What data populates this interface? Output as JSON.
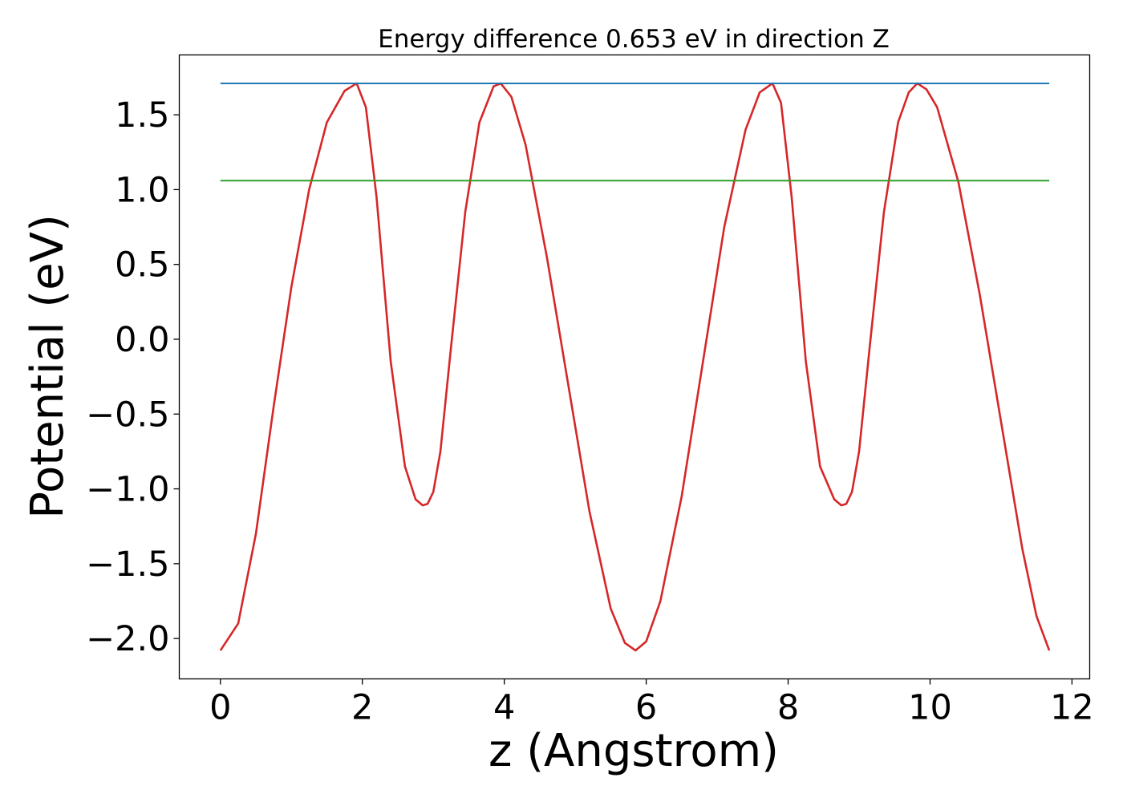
{
  "chart_data": {
    "type": "line",
    "title": "Energy difference 0.653 eV in direction Z",
    "xlabel": "z (Angstrom)",
    "ylabel": "Potential (eV)",
    "xlim": [
      -0.58,
      12.25
    ],
    "ylim": [
      -2.27,
      1.9
    ],
    "xticks": [
      0,
      2,
      4,
      6,
      8,
      10,
      12
    ],
    "xtick_labels": [
      "0",
      "2",
      "4",
      "6",
      "8",
      "10",
      "12"
    ],
    "yticks": [
      -2.0,
      -1.5,
      -1.0,
      -0.5,
      0.0,
      0.5,
      1.0,
      1.5
    ],
    "ytick_labels": [
      "−2.0",
      "−1.5",
      "−1.0",
      "−0.5",
      "0.0",
      "0.5",
      "1.0",
      "1.5"
    ],
    "grid": false,
    "series": [
      {
        "color": "#d62728",
        "x": [
          0.0,
          0.25,
          0.5,
          0.75,
          1.0,
          1.25,
          1.5,
          1.75,
          1.92,
          2.05,
          2.2,
          2.4,
          2.6,
          2.75,
          2.85,
          2.92,
          3.0,
          3.1,
          3.25,
          3.45,
          3.65,
          3.85,
          3.95,
          4.1,
          4.3,
          4.6,
          4.9,
          5.2,
          5.5,
          5.7,
          5.85,
          6.0,
          6.2,
          6.5,
          6.8,
          7.1,
          7.4,
          7.6,
          7.78,
          7.9,
          8.05,
          8.25,
          8.45,
          8.65,
          8.75,
          8.82,
          8.9,
          9.0,
          9.15,
          9.35,
          9.55,
          9.7,
          9.82,
          9.95,
          10.1,
          10.4,
          10.7,
          11.0,
          11.3,
          11.5,
          11.68
        ],
        "y": [
          -2.08,
          -1.9,
          -1.3,
          -0.45,
          0.35,
          1.0,
          1.45,
          1.66,
          1.71,
          1.55,
          0.95,
          -0.15,
          -0.85,
          -1.07,
          -1.11,
          -1.1,
          -1.02,
          -0.75,
          -0.05,
          0.85,
          1.45,
          1.69,
          1.71,
          1.62,
          1.3,
          0.55,
          -0.3,
          -1.15,
          -1.8,
          -2.03,
          -2.08,
          -2.02,
          -1.75,
          -1.05,
          -0.15,
          0.75,
          1.4,
          1.65,
          1.71,
          1.58,
          0.95,
          -0.15,
          -0.85,
          -1.07,
          -1.11,
          -1.1,
          -1.02,
          -0.75,
          -0.05,
          0.85,
          1.45,
          1.65,
          1.71,
          1.67,
          1.55,
          1.05,
          0.3,
          -0.55,
          -1.4,
          -1.85,
          -2.08
        ]
      },
      {
        "color": "#1f77b4",
        "x": [
          0.0,
          11.68
        ],
        "y": [
          1.71,
          1.71
        ]
      },
      {
        "color": "#2ca02c",
        "x": [
          0.0,
          11.68
        ],
        "y": [
          1.06,
          1.06
        ]
      }
    ]
  }
}
